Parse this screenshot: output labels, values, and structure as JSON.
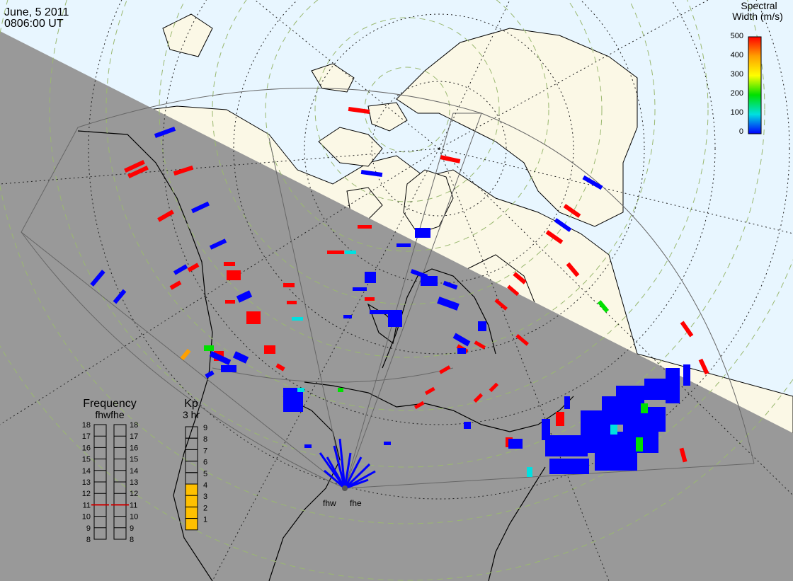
{
  "header": {
    "date": "June, 5 2011",
    "time": "0806:00 UT"
  },
  "legend": {
    "title_line1": "Spectral",
    "title_line2": "Width (m/s)",
    "ticks": [
      "500",
      "400",
      "300",
      "200",
      "100",
      "0"
    ],
    "colors": [
      "#ff0000",
      "#ffa000",
      "#ffff00",
      "#00e000",
      "#00e0e0",
      "#0000ff"
    ]
  },
  "frequency_panel": {
    "title": "Frequency",
    "subtitle": "fhwfhe",
    "levels": [
      "18",
      "17",
      "16",
      "15",
      "14",
      "13",
      "12",
      "11",
      "10",
      "9",
      "8"
    ],
    "fhw_current": "11",
    "fhe_current": "11",
    "marker_color": "#cc0000"
  },
  "kp_panel": {
    "title": "Kp",
    "subtitle": "3 hr",
    "levels": [
      "9",
      "8",
      "7",
      "6",
      "5",
      "4",
      "3",
      "2",
      "1"
    ],
    "value": 4,
    "fill_color": "#ffc000"
  },
  "radars": [
    "fhw",
    "fhe"
  ],
  "colors": {
    "night": "#999999",
    "day_ocean": "#e8f6ff",
    "day_land": "#fbf8e6",
    "grid_dotted": "#222222",
    "grid_lat": "#9ab870"
  }
}
